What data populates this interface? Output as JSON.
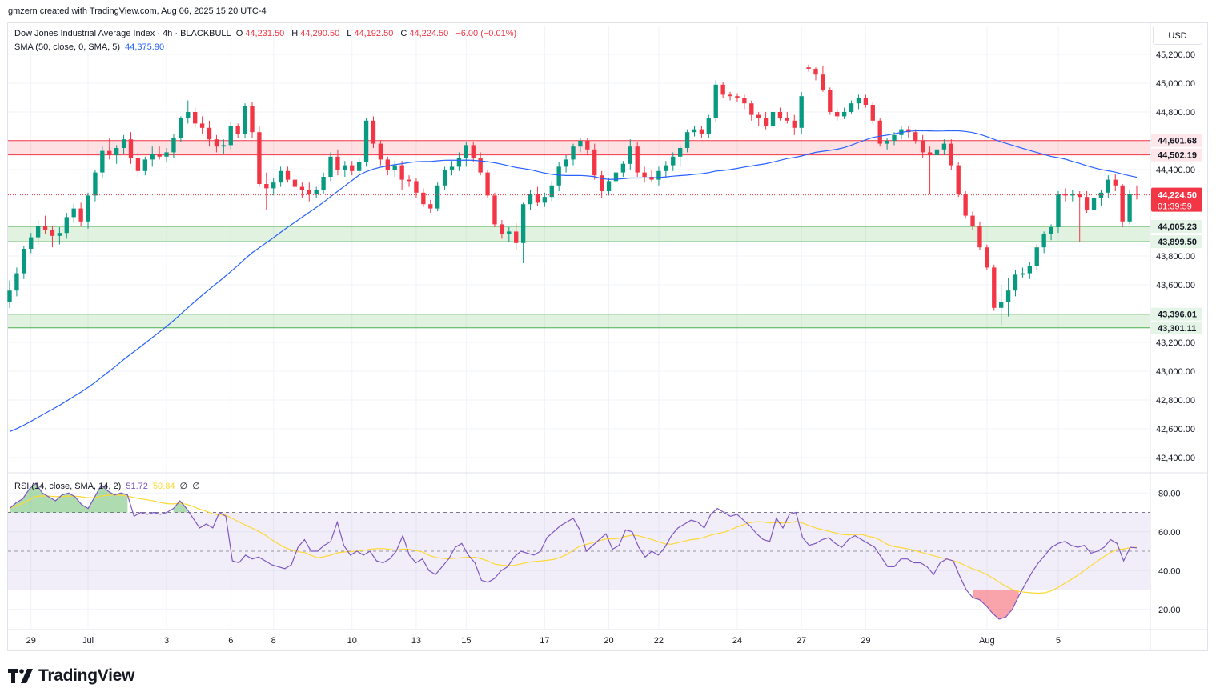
{
  "header": {
    "created_by": "gmzern created with TradingView.com, Aug 06, 2025 15:20 UTC-4"
  },
  "legend": {
    "symbol": "Dow Jones Industrial Average Index · 4h · BLACKBULL",
    "o_label": "O",
    "o": "44,231.50",
    "h_label": "H",
    "h": "44,290.50",
    "l_label": "L",
    "l": "44,192.50",
    "c_label": "C",
    "c": "44,224.50",
    "change": "−6.00 (−0.01%)",
    "sma_label": "SMA (50, close, 0, SMA, 5)",
    "sma_value": "44,375.90",
    "rsi_label": "RSI (14, close, SMA, 14, 2)",
    "rsi_value": "51.72",
    "rsi_sma_value": "50.84",
    "rsi_extra_1": "∅",
    "rsi_extra_2": "∅"
  },
  "currency": "USD",
  "colors": {
    "up": "#089981",
    "down": "#f23645",
    "sma": "#2962ff",
    "rsi": "#7e57c2",
    "rsi_sma": "#fdd835"
  },
  "logo_text": "TradingView",
  "chart_data": [
    {
      "type": "candlestick",
      "title": "Dow Jones Industrial Average Index · 4h · BLACKBULL",
      "ylim": [
        42300,
        45400
      ],
      "y_ticks": [
        "45,200.00",
        "45,000.00",
        "44,800.00",
        "44,400.00",
        "43,800.00",
        "43,600.00",
        "43,200.00",
        "43,000.00",
        "42,800.00",
        "42,600.00",
        "42,400.00"
      ],
      "x_ticks": [
        "29",
        "Jul",
        "3",
        "6",
        "8",
        "10",
        "13",
        "15",
        "17",
        "20",
        "22",
        "24",
        "27",
        "29",
        "Aug",
        "5"
      ],
      "last_price": "44,224.50",
      "countdown": "01:39:59",
      "zones": [
        {
          "name": "resistance",
          "top": 44601.68,
          "bottom": 44502.19,
          "top_label": "44,601.68",
          "bottom_label": "44,502.19"
        },
        {
          "name": "support",
          "top": 44005.23,
          "bottom": 43899.5,
          "top_label": "44,005.23",
          "bottom_label": "43,899.50"
        },
        {
          "name": "support",
          "top": 43396.01,
          "bottom": 43301.11,
          "top_label": "43,396.01",
          "bottom_label": "43,301.11"
        }
      ],
      "candles": [
        [
          43480,
          43630,
          43440,
          43560
        ],
        [
          43560,
          43720,
          43520,
          43680
        ],
        [
          43680,
          43870,
          43640,
          43850
        ],
        [
          43850,
          43960,
          43820,
          43930
        ],
        [
          43930,
          44050,
          43880,
          44010
        ],
        [
          44010,
          44080,
          43950,
          43980
        ],
        [
          43980,
          44010,
          43860,
          43940
        ],
        [
          43940,
          44000,
          43880,
          43960
        ],
        [
          43960,
          44100,
          43920,
          44070
        ],
        [
          44070,
          44160,
          44030,
          44130
        ],
        [
          44130,
          44170,
          44010,
          44040
        ],
        [
          44040,
          44240,
          43990,
          44220
        ],
        [
          44220,
          44400,
          44180,
          44380
        ],
        [
          44380,
          44560,
          44340,
          44530
        ],
        [
          44530,
          44620,
          44470,
          44500
        ],
        [
          44500,
          44570,
          44440,
          44550
        ],
        [
          44550,
          44640,
          44510,
          44610
        ],
        [
          44610,
          44660,
          44440,
          44480
        ],
        [
          44480,
          44520,
          44340,
          44390
        ],
        [
          44390,
          44490,
          44360,
          44470
        ],
        [
          44470,
          44560,
          44420,
          44510
        ],
        [
          44510,
          44560,
          44470,
          44490
        ],
        [
          44490,
          44550,
          44450,
          44520
        ],
        [
          44520,
          44650,
          44480,
          44620
        ],
        [
          44620,
          44770,
          44590,
          44760
        ],
        [
          44760,
          44880,
          44720,
          44800
        ],
        [
          44800,
          44830,
          44690,
          44720
        ],
        [
          44720,
          44770,
          44650,
          44690
        ],
        [
          44690,
          44740,
          44560,
          44610
        ],
        [
          44610,
          44640,
          44520,
          44560
        ],
        [
          44560,
          44610,
          44510,
          44570
        ],
        [
          44570,
          44730,
          44540,
          44700
        ],
        [
          44700,
          44720,
          44620,
          44650
        ],
        [
          44650,
          44860,
          44620,
          44840
        ],
        [
          44840,
          44870,
          44620,
          44660
        ],
        [
          44660,
          44700,
          44280,
          44300
        ],
        [
          44300,
          44380,
          44120,
          44270
        ],
        [
          44270,
          44340,
          44220,
          44310
        ],
        [
          44310,
          44420,
          44280,
          44390
        ],
        [
          44390,
          44420,
          44310,
          44330
        ],
        [
          44330,
          44360,
          44240,
          44280
        ],
        [
          44280,
          44310,
          44200,
          44260
        ],
        [
          44260,
          44310,
          44180,
          44230
        ],
        [
          44230,
          44280,
          44200,
          44260
        ],
        [
          44260,
          44380,
          44230,
          44350
        ],
        [
          44350,
          44520,
          44320,
          44490
        ],
        [
          44490,
          44540,
          44360,
          44400
        ],
        [
          44400,
          44460,
          44350,
          44430
        ],
        [
          44430,
          44460,
          44360,
          44390
        ],
        [
          44390,
          44480,
          44360,
          44450
        ],
        [
          44450,
          44760,
          44420,
          44740
        ],
        [
          44740,
          44770,
          44550,
          44580
        ],
        [
          44580,
          44600,
          44430,
          44470
        ],
        [
          44470,
          44490,
          44360,
          44400
        ],
        [
          44400,
          44460,
          44350,
          44430
        ],
        [
          44430,
          44460,
          44260,
          44330
        ],
        [
          44330,
          44360,
          44280,
          44320
        ],
        [
          44320,
          44340,
          44200,
          44240
        ],
        [
          44240,
          44270,
          44140,
          44160
        ],
        [
          44160,
          44190,
          44100,
          44130
        ],
        [
          44130,
          44310,
          44110,
          44290
        ],
        [
          44290,
          44420,
          44260,
          44400
        ],
        [
          44400,
          44460,
          44360,
          44420
        ],
        [
          44420,
          44520,
          44390,
          44480
        ],
        [
          44480,
          44590,
          44420,
          44570
        ],
        [
          44570,
          44590,
          44450,
          44480
        ],
        [
          44480,
          44520,
          44360,
          44380
        ],
        [
          44380,
          44400,
          44200,
          44220
        ],
        [
          44220,
          44240,
          44000,
          44020
        ],
        [
          44020,
          44050,
          43920,
          43950
        ],
        [
          43950,
          44000,
          43900,
          43970
        ],
        [
          43970,
          44030,
          43840,
          43890
        ],
        [
          43890,
          44170,
          43750,
          44160
        ],
        [
          44160,
          44260,
          44120,
          44230
        ],
        [
          44230,
          44280,
          44150,
          44170
        ],
        [
          44170,
          44240,
          44140,
          44210
        ],
        [
          44210,
          44320,
          44180,
          44290
        ],
        [
          44290,
          44450,
          44250,
          44420
        ],
        [
          44420,
          44500,
          44380,
          44470
        ],
        [
          44470,
          44580,
          44430,
          44560
        ],
        [
          44560,
          44620,
          44520,
          44600
        ],
        [
          44600,
          44620,
          44500,
          44540
        ],
        [
          44540,
          44580,
          44330,
          44360
        ],
        [
          44360,
          44390,
          44200,
          44250
        ],
        [
          44250,
          44340,
          44220,
          44320
        ],
        [
          44320,
          44400,
          44300,
          44380
        ],
        [
          44380,
          44460,
          44350,
          44440
        ],
        [
          44440,
          44610,
          44400,
          44560
        ],
        [
          44560,
          44590,
          44350,
          44380
        ],
        [
          44380,
          44420,
          44310,
          44350
        ],
        [
          44350,
          44400,
          44310,
          44330
        ],
        [
          44330,
          44420,
          44290,
          44390
        ],
        [
          44390,
          44460,
          44340,
          44430
        ],
        [
          44430,
          44520,
          44390,
          44490
        ],
        [
          44490,
          44570,
          44420,
          44550
        ],
        [
          44550,
          44680,
          44520,
          44660
        ],
        [
          44660,
          44700,
          44630,
          44680
        ],
        [
          44680,
          44700,
          44620,
          44650
        ],
        [
          44650,
          44780,
          44620,
          44760
        ],
        [
          44760,
          45020,
          44730,
          44990
        ],
        [
          44990,
          45010,
          44900,
          44920
        ],
        [
          44920,
          44940,
          44880,
          44910
        ],
        [
          44910,
          44930,
          44870,
          44900
        ],
        [
          44900,
          44920,
          44820,
          44860
        ],
        [
          44860,
          44880,
          44740,
          44780
        ],
        [
          44780,
          44800,
          44700,
          44760
        ],
        [
          44760,
          44800,
          44680,
          44700
        ],
        [
          44700,
          44860,
          44670,
          44800
        ],
        [
          44800,
          44830,
          44740,
          44760
        ],
        [
          44760,
          44800,
          44720,
          44740
        ],
        [
          44740,
          44780,
          44640,
          44690
        ],
        [
          44690,
          44940,
          44650,
          44910
        ],
        [
          45110,
          45130,
          45080,
          45100
        ],
        [
          45100,
          45110,
          45020,
          45060
        ],
        [
          45060,
          45120,
          44940,
          44950
        ],
        [
          44950,
          44970,
          44780,
          44800
        ],
        [
          44800,
          44820,
          44740,
          44770
        ],
        [
          44770,
          44830,
          44750,
          44800
        ],
        [
          44800,
          44880,
          44790,
          44860
        ],
        [
          44860,
          44920,
          44820,
          44900
        ],
        [
          44900,
          44920,
          44830,
          44850
        ],
        [
          44850,
          44870,
          44720,
          44740
        ],
        [
          44740,
          44760,
          44560,
          44580
        ],
        [
          44580,
          44620,
          44540,
          44600
        ],
        [
          44600,
          44660,
          44570,
          44640
        ],
        [
          44640,
          44700,
          44610,
          44680
        ],
        [
          44680,
          44700,
          44620,
          44660
        ],
        [
          44660,
          44680,
          44580,
          44600
        ],
        [
          44600,
          44640,
          44480,
          44520
        ],
        [
          44520,
          44560,
          44230,
          44500
        ],
        [
          44500,
          44560,
          44460,
          44540
        ],
        [
          44540,
          44610,
          44500,
          44580
        ],
        [
          44580,
          44610,
          44400,
          44430
        ],
        [
          44430,
          44450,
          44210,
          44230
        ],
        [
          44230,
          44250,
          44060,
          44080
        ],
        [
          44080,
          44110,
          43980,
          44010
        ],
        [
          44010,
          44040,
          43840,
          43860
        ],
        [
          43860,
          43880,
          43700,
          43720
        ],
        [
          43720,
          43740,
          43420,
          43440
        ],
        [
          43440,
          43600,
          43320,
          43480
        ],
        [
          43480,
          43650,
          43380,
          43560
        ],
        [
          43560,
          43700,
          43520,
          43670
        ],
        [
          43670,
          43720,
          43650,
          43680
        ],
        [
          43680,
          43760,
          43640,
          43730
        ],
        [
          43730,
          43880,
          43700,
          43860
        ],
        [
          43860,
          43970,
          43820,
          43950
        ],
        [
          43950,
          44020,
          43910,
          44000
        ],
        [
          44000,
          44250,
          43960,
          44230
        ],
        [
          44230,
          44270,
          44180,
          44220
        ],
        [
          44220,
          44260,
          44180,
          44230
        ],
        [
          44230,
          44250,
          43900,
          44210
        ],
        [
          44210,
          44250,
          44100,
          44120
        ],
        [
          44120,
          44220,
          44090,
          44200
        ],
        [
          44200,
          44260,
          44150,
          44240
        ],
        [
          44240,
          44360,
          44200,
          44330
        ],
        [
          44330,
          44370,
          44250,
          44290
        ],
        [
          44290,
          44300,
          44000,
          44040
        ],
        [
          44040,
          44260,
          44020,
          44231.5
        ],
        [
          44231.5,
          44290.5,
          44192.5,
          44224.5
        ]
      ]
    },
    {
      "type": "line",
      "title": "RSI (14, close, SMA, 14, 2)",
      "ylim": [
        10,
        90
      ],
      "y_ticks": [
        "80.00",
        "60.00",
        "40.00",
        "20.00"
      ],
      "levels": [
        70,
        50,
        30
      ],
      "series": [
        {
          "name": "RSI",
          "values": [
            72,
            75,
            77,
            82,
            85,
            80,
            78,
            76,
            79,
            80,
            78,
            74,
            72,
            78,
            84,
            81,
            79,
            80,
            79,
            68,
            70,
            69,
            70,
            69,
            70,
            72,
            76,
            72,
            67,
            62,
            64,
            62,
            70,
            68,
            45,
            44,
            48,
            46,
            47,
            45,
            43,
            42,
            41,
            43,
            52,
            56,
            50,
            50,
            53,
            55,
            65,
            53,
            48,
            50,
            48,
            50,
            45,
            44,
            46,
            50,
            58,
            48,
            44,
            46,
            40,
            38,
            42,
            46,
            52,
            54,
            48,
            44,
            35,
            34,
            36,
            40,
            42,
            47,
            50,
            49,
            48,
            50,
            57,
            60,
            63,
            65,
            67,
            61,
            50,
            53,
            56,
            59,
            51,
            53,
            61,
            60,
            52,
            47,
            50,
            48,
            52,
            58,
            62,
            64,
            66,
            65,
            62,
            69,
            72,
            70,
            68,
            69,
            66,
            63,
            59,
            56,
            55,
            67,
            62,
            69,
            70,
            57,
            53,
            54,
            56,
            57,
            54,
            52,
            56,
            58,
            56,
            54,
            52,
            47,
            42,
            42,
            46,
            46,
            44,
            44,
            42,
            38,
            44,
            46,
            45,
            37,
            30,
            26,
            25,
            22,
            18,
            15,
            16,
            20,
            27,
            33,
            39,
            44,
            48,
            52,
            54,
            55,
            53,
            52,
            53,
            49,
            50,
            52,
            56,
            54,
            45,
            52,
            51.72
          ]
        },
        {
          "name": "RSI SMA",
          "values": []
        }
      ]
    }
  ]
}
